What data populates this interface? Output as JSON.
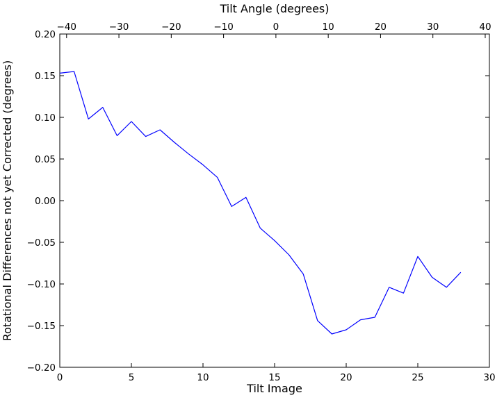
{
  "chart_data": {
    "type": "line",
    "title": "",
    "top_axis": {
      "label": "Tilt Angle (degrees)",
      "ticks": [
        -40,
        -30,
        -20,
        -10,
        0,
        10,
        20,
        30,
        40
      ],
      "range": [
        -41.3,
        40.8
      ]
    },
    "xlabel": "Tilt Image",
    "ylabel": "Rotational Differences not yet Corrected (degrees)",
    "xlim": [
      0,
      30
    ],
    "ylim": [
      -0.2,
      0.2
    ],
    "x_ticks": [
      0,
      5,
      10,
      15,
      20,
      25,
      30
    ],
    "y_ticks": [
      -0.2,
      -0.15,
      -0.1,
      -0.05,
      0.0,
      0.05,
      0.1,
      0.15,
      0.2
    ],
    "grid": false,
    "legend": null,
    "line_color": "#0000ff",
    "series": [
      {
        "name": "rotational-difference",
        "x": [
          0,
          1,
          2,
          3,
          4,
          5,
          6,
          7,
          8,
          9,
          10,
          11,
          12,
          13,
          14,
          15,
          16,
          17,
          18,
          19,
          20,
          21,
          22,
          23,
          24,
          25,
          26,
          27,
          28
        ],
        "y": [
          0.153,
          0.155,
          0.098,
          0.112,
          0.078,
          0.095,
          0.077,
          0.085,
          0.07,
          0.056,
          0.043,
          0.028,
          -0.007,
          0.004,
          -0.033,
          -0.048,
          -0.065,
          -0.088,
          -0.144,
          -0.16,
          -0.155,
          -0.143,
          -0.14,
          -0.104,
          -0.111,
          -0.067,
          -0.092,
          -0.104,
          -0.086
        ]
      }
    ]
  }
}
